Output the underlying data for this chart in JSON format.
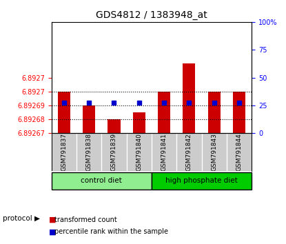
{
  "title": "GDS4812 / 1383948_at",
  "samples": [
    "GSM791837",
    "GSM791838",
    "GSM791839",
    "GSM791840",
    "GSM791841",
    "GSM791842",
    "GSM791843",
    "GSM791844"
  ],
  "red_values": [
    6.8927,
    6.89269,
    6.89268,
    6.892685,
    6.8927,
    6.89272,
    6.8927,
    6.8927
  ],
  "blue_values": [
    6.892692,
    6.892692,
    6.892692,
    6.892692,
    6.892692,
    6.892692,
    6.892692,
    6.892692
  ],
  "ymin": 6.89267,
  "ymax": 6.89275,
  "y_ticks_left": [
    6.89267,
    6.89268,
    6.89269,
    6.8927,
    6.8927
  ],
  "y_tick_labels_left": [
    "6.89267",
    "6.89268",
    "6.89269",
    "6.8927",
    "6.8927"
  ],
  "y_ticks_right": [
    0,
    25,
    50,
    75,
    100
  ],
  "groups": [
    {
      "label": "control diet",
      "samples": [
        "GSM791837",
        "GSM791838",
        "GSM791839",
        "GSM791840"
      ],
      "color": "#90EE90"
    },
    {
      "label": "high phosphate diet",
      "samples": [
        "GSM791841",
        "GSM791842",
        "GSM791843",
        "GSM791844"
      ],
      "color": "#00CC00"
    }
  ],
  "bar_color": "#CC0000",
  "dot_color": "#0000CC",
  "grid_color": "#000000",
  "background_plot": "#FFFFFF",
  "background_xtick": "#CCCCCC",
  "protocol_label": "protocol",
  "legend_items": [
    {
      "label": "transformed count",
      "color": "#CC0000",
      "marker": "s"
    },
    {
      "label": "percentile rank within the sample",
      "color": "#0000CC",
      "marker": "s"
    }
  ]
}
